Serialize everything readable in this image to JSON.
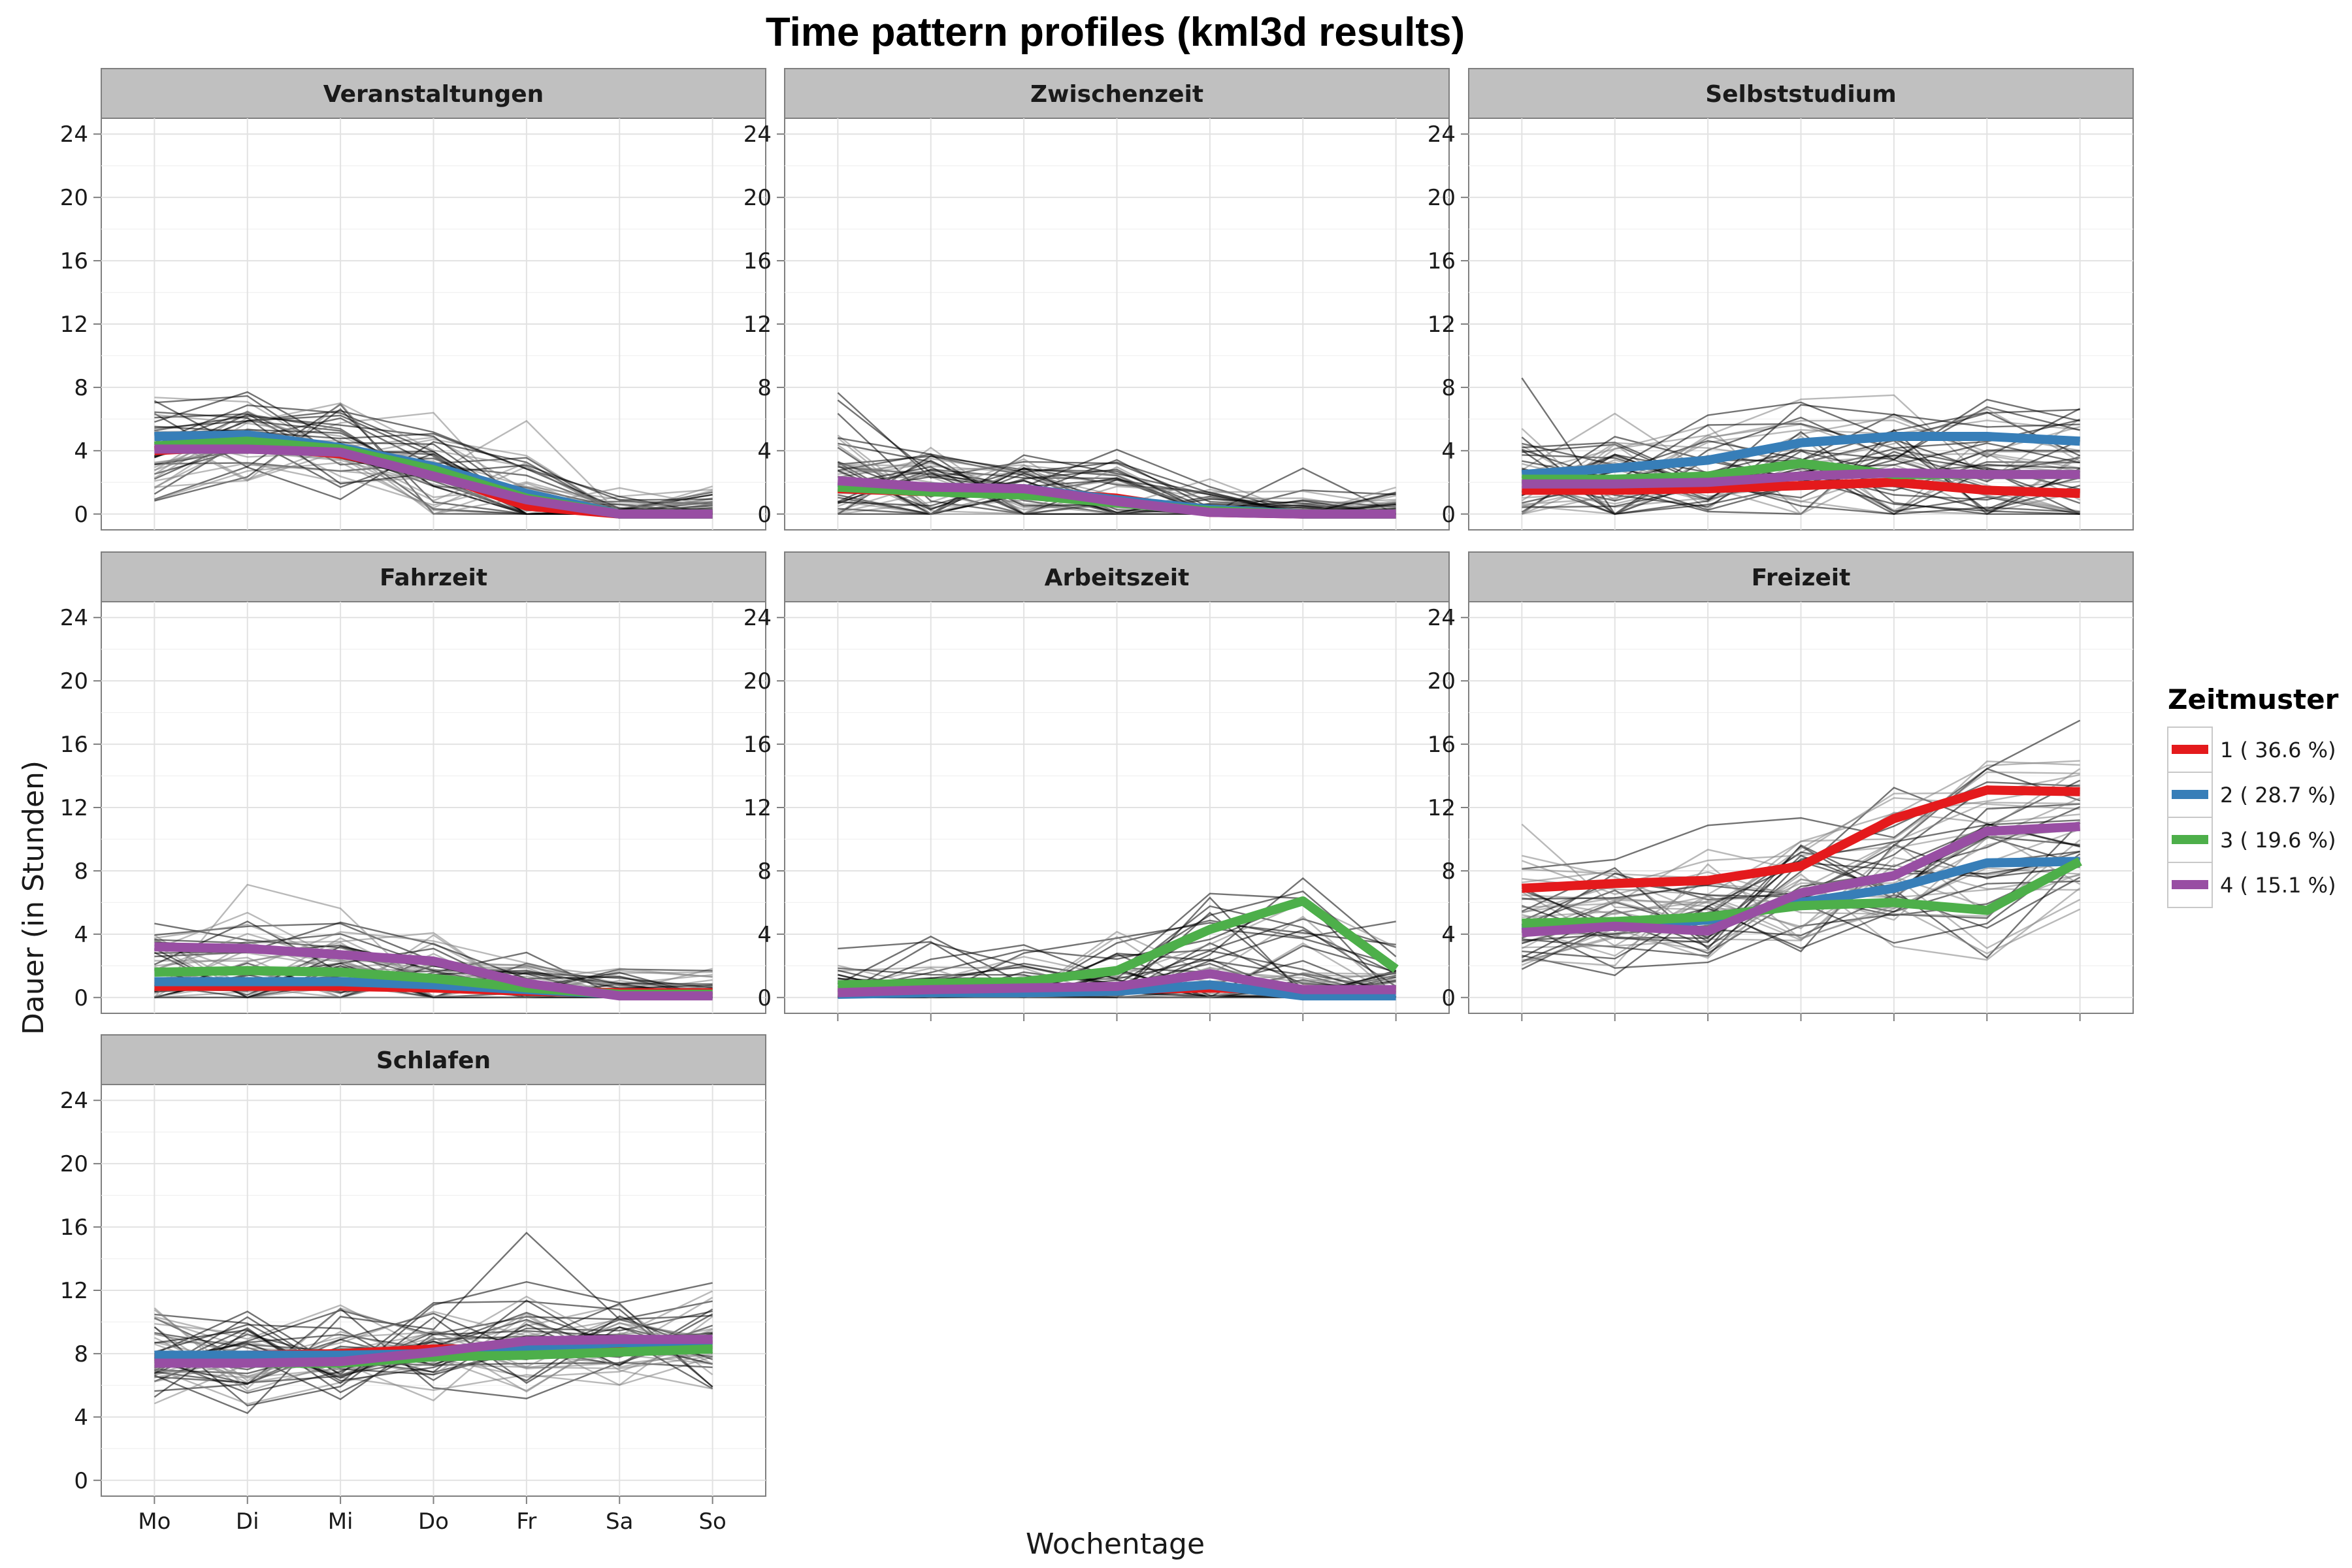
{
  "chart_data": {
    "type": "line",
    "title": "Time pattern profiles (kml3d results)",
    "xlabel": "Wochentage",
    "ylabel": "Dauer (in Stunden)",
    "categories": [
      "Mo",
      "Di",
      "Mi",
      "Do",
      "Fr",
      "Sa",
      "So"
    ],
    "yticks": [
      0,
      4,
      8,
      12,
      16,
      20,
      24
    ],
    "ylim": [
      -1,
      25
    ],
    "grid": true,
    "legend": {
      "title": "Zeitmuster",
      "placement": "right",
      "entries": [
        "1 ( 36.6 %)",
        "2 ( 28.7 %)",
        "3 ( 19.6 %)",
        "4 ( 15.1 %)"
      ]
    },
    "colors": {
      "1": "#e41a1c",
      "2": "#377eb8",
      "3": "#4daf4a",
      "4": "#984ea3"
    },
    "panels": [
      {
        "name": "Veranstaltungen",
        "series": [
          {
            "name": "1 ( 36.6 %)",
            "values": [
              4.0,
              4.3,
              3.8,
              2.6,
              0.5,
              0.0,
              0.0
            ]
          },
          {
            "name": "2 ( 28.7 %)",
            "values": [
              4.9,
              5.0,
              4.2,
              3.0,
              1.3,
              0.0,
              0.0
            ]
          },
          {
            "name": "3 ( 19.6 %)",
            "values": [
              4.3,
              4.6,
              4.1,
              2.8,
              1.0,
              0.0,
              0.0
            ]
          },
          {
            "name": "4 ( 15.1 %)",
            "values": [
              4.1,
              4.1,
              3.9,
              2.4,
              0.9,
              0.0,
              0.0
            ]
          }
        ]
      },
      {
        "name": "Zwischenzeit",
        "series": [
          {
            "name": "1 ( 36.6 %)",
            "values": [
              1.6,
              1.4,
              1.4,
              1.0,
              0.1,
              0.0,
              0.0
            ]
          },
          {
            "name": "2 ( 28.7 %)",
            "values": [
              2.0,
              1.7,
              1.6,
              0.9,
              0.3,
              0.0,
              0.0
            ]
          },
          {
            "name": "3 ( 19.6 %)",
            "values": [
              1.7,
              1.4,
              1.2,
              0.7,
              0.2,
              0.0,
              0.0
            ]
          },
          {
            "name": "4 ( 15.1 %)",
            "values": [
              2.1,
              1.7,
              1.6,
              0.8,
              0.1,
              0.0,
              0.0
            ]
          }
        ]
      },
      {
        "name": "Selbststudium",
        "series": [
          {
            "name": "1 ( 36.6 %)",
            "values": [
              1.5,
              1.5,
              1.6,
              1.8,
              2.0,
              1.5,
              1.3
            ]
          },
          {
            "name": "2 ( 28.7 %)",
            "values": [
              2.5,
              2.9,
              3.4,
              4.5,
              4.9,
              4.9,
              4.6
            ]
          },
          {
            "name": "3 ( 19.6 %)",
            "values": [
              2.2,
              2.2,
              2.4,
              3.2,
              2.5,
              2.5,
              2.5
            ]
          },
          {
            "name": "4 ( 15.1 %)",
            "values": [
              1.9,
              1.9,
              2.0,
              2.4,
              2.6,
              2.5,
              2.5
            ]
          }
        ]
      },
      {
        "name": "Fahrzeit",
        "series": [
          {
            "name": "1 ( 36.6 %)",
            "values": [
              0.7,
              0.7,
              0.7,
              0.6,
              0.4,
              0.3,
              0.3
            ]
          },
          {
            "name": "2 ( 28.7 %)",
            "values": [
              1.0,
              1.0,
              1.0,
              0.8,
              0.5,
              0.2,
              0.2
            ]
          },
          {
            "name": "3 ( 19.6 %)",
            "values": [
              1.6,
              1.7,
              1.6,
              1.2,
              0.6,
              0.2,
              0.2
            ]
          },
          {
            "name": "4 ( 15.1 %)",
            "values": [
              3.2,
              3.1,
              2.7,
              2.3,
              0.9,
              0.1,
              0.1
            ]
          }
        ]
      },
      {
        "name": "Arbeitszeit",
        "series": [
          {
            "name": "1 ( 36.6 %)",
            "values": [
              0.4,
              0.4,
              0.4,
              0.5,
              0.6,
              0.5,
              0.4
            ]
          },
          {
            "name": "2 ( 28.7 %)",
            "values": [
              0.2,
              0.3,
              0.3,
              0.4,
              0.8,
              0.1,
              0.1
            ]
          },
          {
            "name": "3 ( 19.6 %)",
            "values": [
              0.8,
              0.9,
              1.0,
              1.7,
              4.3,
              6.1,
              1.8
            ]
          },
          {
            "name": "4 ( 15.1 %)",
            "values": [
              0.3,
              0.5,
              0.6,
              0.7,
              1.5,
              0.5,
              0.5
            ]
          }
        ]
      },
      {
        "name": "Freizeit",
        "series": [
          {
            "name": "1 ( 36.6 %)",
            "values": [
              6.9,
              7.2,
              7.4,
              8.3,
              11.3,
              13.1,
              13.0
            ]
          },
          {
            "name": "2 ( 28.7 %)",
            "values": [
              4.3,
              4.5,
              4.9,
              6.0,
              6.9,
              8.5,
              8.6
            ]
          },
          {
            "name": "3 ( 19.6 %)",
            "values": [
              4.7,
              4.8,
              5.1,
              5.8,
              6.0,
              5.5,
              8.6
            ]
          },
          {
            "name": "4 ( 15.1 %)",
            "values": [
              4.1,
              4.5,
              4.2,
              6.6,
              7.7,
              10.5,
              10.8
            ]
          }
        ]
      },
      {
        "name": "Schlafen",
        "series": [
          {
            "name": "1 ( 36.6 %)",
            "values": [
              7.7,
              7.9,
              8.0,
              8.3,
              8.3,
              8.6,
              8.6
            ]
          },
          {
            "name": "2 ( 28.7 %)",
            "values": [
              7.9,
              7.9,
              7.9,
              8.0,
              8.4,
              8.7,
              8.7
            ]
          },
          {
            "name": "3 ( 19.6 %)",
            "values": [
              7.4,
              7.4,
              7.4,
              7.8,
              7.9,
              8.1,
              8.3
            ]
          },
          {
            "name": "4 ( 15.1 %)",
            "values": [
              7.4,
              7.4,
              7.5,
              8.1,
              8.8,
              8.9,
              8.9
            ]
          }
        ]
      }
    ]
  }
}
